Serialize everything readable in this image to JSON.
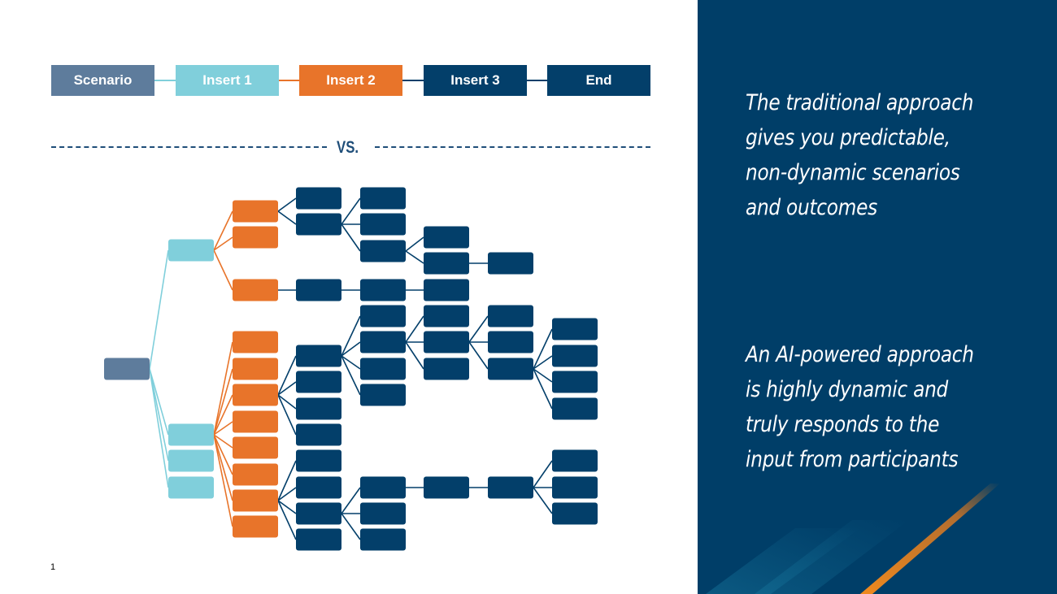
{
  "header_flow": [
    {
      "label": "Scenario",
      "color": "#5e7c9c"
    },
    {
      "label": "Insert 1",
      "color": "#80cfdb"
    },
    {
      "label": "Insert 2",
      "color": "#e8742a"
    },
    {
      "label": "Insert 3",
      "color": "#033f6a"
    },
    {
      "label": "End",
      "color": "#033f6a"
    }
  ],
  "divider_label": "VS.",
  "colors": {
    "scenario": "#5e7c9c",
    "insert1": "#80cfdb",
    "insert2": "#e8742a",
    "insert3": "#033f6a",
    "panel": "#003e68",
    "accent_orange": "#f08a1e"
  },
  "panel": {
    "traditional_lines": [
      "The traditional approach",
      "gives you predictable,",
      "non-dynamic scenarios",
      "and outcomes"
    ],
    "ai_lines": [
      "An AI-powered approach",
      "is highly dynamic and",
      "truly responds to the",
      "input from participants"
    ]
  },
  "page_number": "1"
}
